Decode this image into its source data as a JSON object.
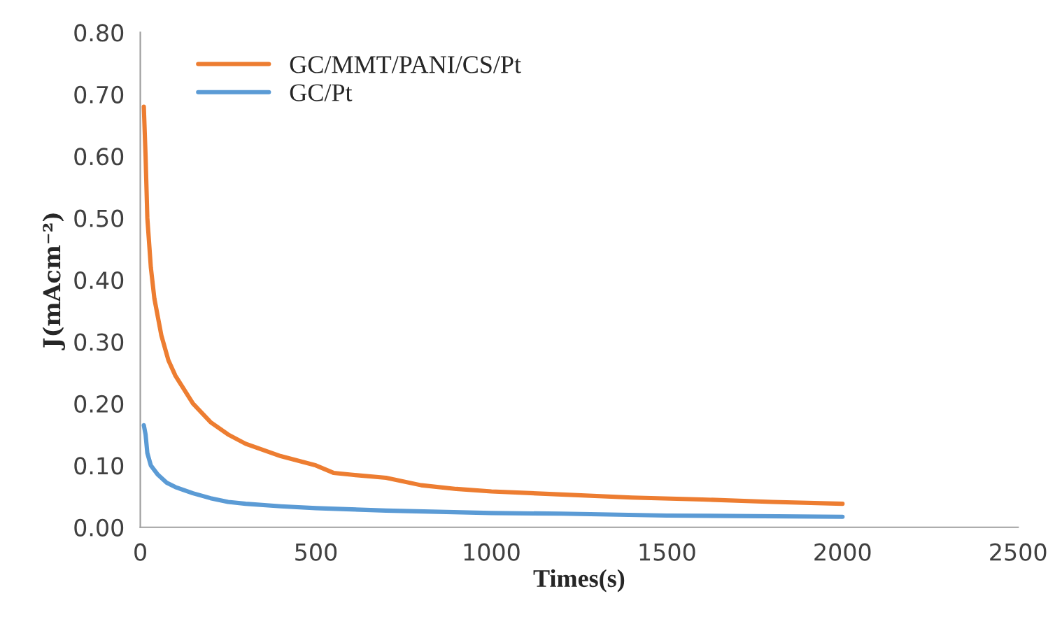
{
  "chart_data": {
    "type": "line",
    "xlabel": "Times(s)",
    "ylabel": "J(mAcm⁻²)",
    "xlim": [
      0,
      2500
    ],
    "xticks": [
      0,
      500,
      1000,
      1500,
      2000,
      2500
    ],
    "ylim": [
      0,
      0.8
    ],
    "yticks": [
      {
        "value": 0,
        "label": "0.00"
      },
      {
        "value": 0.1,
        "label": "0.10"
      },
      {
        "value": 0.2,
        "label": "0.20"
      },
      {
        "value": 0.3,
        "label": "0.30"
      },
      {
        "value": 0.4,
        "label": "0.40"
      },
      {
        "value": 0.5,
        "label": "0.50"
      },
      {
        "value": 0.6,
        "label": "0.60"
      },
      {
        "value": 0.7,
        "label": "0.70"
      },
      {
        "value": 0.8,
        "label": "0.80"
      }
    ],
    "grid": false,
    "legend": "top left",
    "marker": "none",
    "line_style": "solid",
    "series": [
      {
        "name": "GC/MMT/PANI/CS/Pt",
        "color": "#ed7d31",
        "x": [
          10,
          15,
          20,
          30,
          40,
          60,
          80,
          100,
          150,
          200,
          250,
          300,
          400,
          500,
          550,
          600,
          700,
          800,
          900,
          1000,
          1200,
          1400,
          1600,
          1800,
          2000
        ],
        "values": [
          0.68,
          0.6,
          0.5,
          0.42,
          0.37,
          0.31,
          0.27,
          0.245,
          0.2,
          0.17,
          0.15,
          0.135,
          0.115,
          0.1,
          0.088,
          0.085,
          0.08,
          0.068,
          0.062,
          0.058,
          0.053,
          0.048,
          0.045,
          0.041,
          0.038
        ]
      },
      {
        "name": "GC/Pt",
        "color": "#5b9bd5",
        "x": [
          10,
          15,
          20,
          30,
          50,
          75,
          100,
          150,
          200,
          250,
          300,
          400,
          500,
          700,
          1000,
          1200,
          1500,
          2000
        ],
        "values": [
          0.165,
          0.15,
          0.12,
          0.1,
          0.085,
          0.072,
          0.065,
          0.055,
          0.047,
          0.041,
          0.038,
          0.034,
          0.031,
          0.027,
          0.023,
          0.022,
          0.019,
          0.017
        ]
      }
    ]
  }
}
